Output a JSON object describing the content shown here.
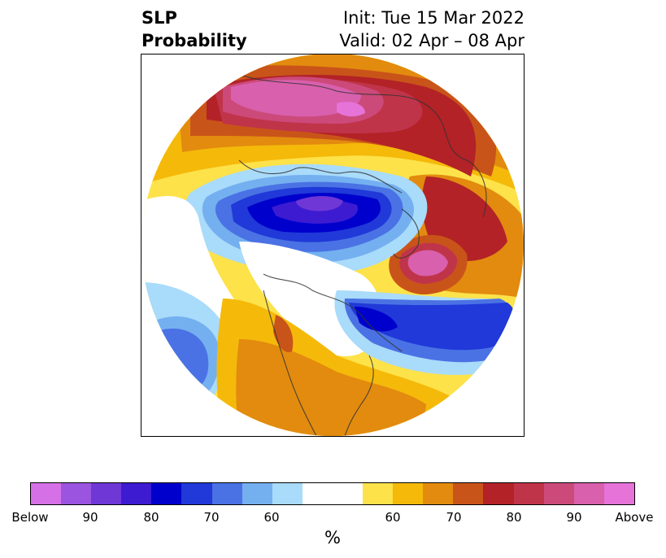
{
  "title": {
    "left_line1": "SLP",
    "left_line2": "Probability",
    "init": "Init: Tue 15 Mar 2022",
    "valid": "Valid: 02 Apr – 08 Apr"
  },
  "colorbar": {
    "unit": "%",
    "colors": [
      "#d670e6",
      "#9b54e0",
      "#6f37d6",
      "#3d1bd1",
      "#0000cd",
      "#2039d8",
      "#4a72e4",
      "#74b0f0",
      "#a9dbfa",
      "#ffffff",
      "#ffffff",
      "#fde24a",
      "#f5b90a",
      "#e28b0f",
      "#c95419",
      "#b32227",
      "#c0344a",
      "#cc4a7a",
      "#d860ad",
      "#e573d8"
    ],
    "tick_labels": [
      "Below",
      "90",
      "80",
      "70",
      "60",
      "60",
      "70",
      "80",
      "90",
      "Above"
    ]
  }
}
